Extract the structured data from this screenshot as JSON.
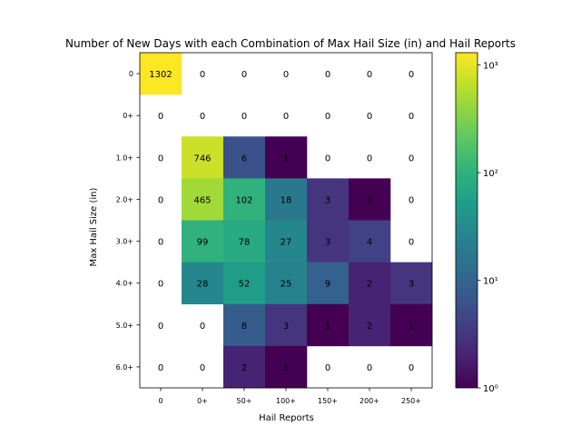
{
  "chart_data": {
    "type": "heatmap",
    "title": "Number of New Days with each Combination of Max Hail Size (in) and Hail Reports",
    "xlabel": "Hail Reports",
    "ylabel": "Max Hail Size (in)",
    "x_categories": [
      "0",
      "0+",
      "50+",
      "100+",
      "150+",
      "200+",
      "250+"
    ],
    "y_categories": [
      "0",
      "0+",
      "1.0+",
      "2.0+",
      "3.0+",
      "4.0+",
      "5.0+",
      "6.0+"
    ],
    "values": [
      [
        1302,
        0,
        0,
        0,
        0,
        0,
        0
      ],
      [
        0,
        0,
        0,
        0,
        0,
        0,
        0
      ],
      [
        0,
        746,
        6,
        1,
        0,
        0,
        0
      ],
      [
        0,
        465,
        102,
        18,
        3,
        1,
        0
      ],
      [
        0,
        99,
        78,
        27,
        3,
        4,
        0
      ],
      [
        0,
        28,
        52,
        25,
        9,
        2,
        3
      ],
      [
        0,
        0,
        8,
        3,
        1,
        2,
        1
      ],
      [
        0,
        0,
        2,
        1,
        0,
        0,
        0
      ]
    ],
    "colorscale": "viridis",
    "color_scale_type": "log",
    "color_range": [
      1,
      1302
    ],
    "colorbar_ticks": [
      {
        "value": 1,
        "label": "10⁰"
      },
      {
        "value": 10,
        "label": "10¹"
      },
      {
        "value": 100,
        "label": "10²"
      },
      {
        "value": 1000,
        "label": "10³"
      }
    ],
    "zero_cells": "white",
    "grid": false
  }
}
